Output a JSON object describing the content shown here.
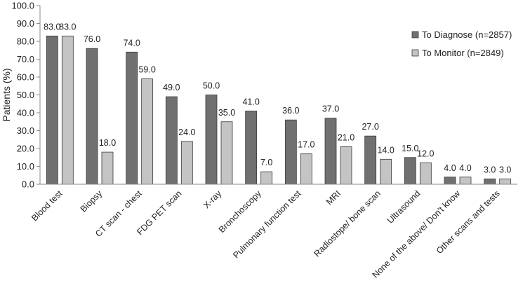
{
  "chart_data": {
    "type": "bar",
    "ylabel": "Patients (%)",
    "ylim": [
      0,
      100
    ],
    "yticks": [
      "0.0",
      "10.0",
      "20.0",
      "30.0",
      "40.0",
      "50.0",
      "60.0",
      "70.0",
      "80.0",
      "90.0",
      "100.0"
    ],
    "grid": false,
    "legend_position": "right",
    "categories": [
      "Blood test",
      "Biopsy",
      "CT scan - chest",
      "FDG PET scan",
      "X-ray",
      "Bronchoscopy",
      "Pulmonary function test",
      "MRI",
      "Radiostope/ bone scan",
      "Ultrasound",
      "None of the above/ Don't know",
      "Other scans and tests"
    ],
    "series": [
      {
        "name": "To Diagnose (n=2857)",
        "color": "#707070",
        "values": [
          83.0,
          76.0,
          74.0,
          49.0,
          50.0,
          41.0,
          36.0,
          37.0,
          27.0,
          15.0,
          4.0,
          3.0
        ],
        "labels": [
          "83.0",
          "76.0",
          "74.0",
          "49.0",
          "50.0",
          "41.0",
          "36.0",
          "37.0",
          "27.0",
          "15.0",
          "4.0",
          "3.0"
        ]
      },
      {
        "name": "To Monitor (n=2849)",
        "color": "#c4c4c4",
        "values": [
          83.0,
          18.0,
          59.0,
          24.0,
          35.0,
          7.0,
          17.0,
          21.0,
          14.0,
          12.0,
          4.0,
          3.0
        ],
        "labels": [
          "83.0",
          "18.0",
          "59.0",
          "24.0",
          "35.0",
          "7.0",
          "17.0",
          "21.0",
          "14.0",
          "12.0",
          "4.0",
          "3.0"
        ]
      }
    ]
  }
}
